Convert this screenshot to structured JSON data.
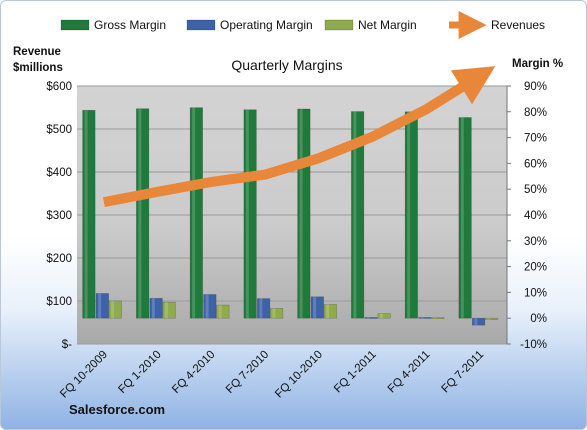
{
  "chart_data": {
    "type": "bar",
    "title": "Quarterly Margins",
    "categories": [
      "FQ 10-2009",
      "FQ 1-2010",
      "FQ 4-2010",
      "FQ 7-2010",
      "FQ 10-2010",
      "FQ 1-2011",
      "FQ 4-2011",
      "FQ 7-2011"
    ],
    "series": [
      {
        "name": "Gross Margin",
        "axis": "right",
        "type": "bar",
        "color": "#1f7a3c",
        "values": [
          80.6,
          81.2,
          81.6,
          80.8,
          81.1,
          80.1,
          80.0,
          77.8
        ]
      },
      {
        "name": "Operating Margin",
        "axis": "right",
        "type": "bar",
        "color": "#3d62a8",
        "values": [
          9.6,
          7.7,
          9.2,
          7.6,
          8.3,
          0.3,
          0.3,
          -2.7
        ]
      },
      {
        "name": "Net Margin",
        "axis": "right",
        "type": "bar",
        "color": "#8fab4e",
        "values": [
          6.7,
          6.2,
          5.1,
          3.8,
          5.3,
          1.8,
          0.2,
          -0.5
        ]
      },
      {
        "name": "Revenues",
        "axis": "left",
        "type": "line",
        "color": "#e8873a",
        "values": [
          330,
          354,
          377,
          394,
          432,
          482,
          546,
          624
        ]
      }
    ],
    "y_left": {
      "label_lines": [
        "Revenue",
        "$millions"
      ],
      "range": [
        0,
        600
      ],
      "ticks": [
        0,
        100,
        200,
        300,
        400,
        500,
        600
      ],
      "tick_labels": [
        "$-",
        "$100",
        "$200",
        "$300",
        "$400",
        "$500",
        "$600"
      ]
    },
    "y_right": {
      "label": "Margin %",
      "range": [
        -10,
        90
      ],
      "ticks": [
        -10,
        0,
        10,
        20,
        30,
        40,
        50,
        60,
        70,
        80,
        90
      ],
      "tick_labels": [
        "-10%",
        "0%",
        "10%",
        "20%",
        "30%",
        "40%",
        "50%",
        "60%",
        "70%",
        "80%",
        "90%"
      ]
    },
    "legend": {
      "position": "top",
      "items": [
        "Gross Margin",
        "Operating Margin",
        "Net Margin",
        "Revenues"
      ]
    },
    "grid": true,
    "source": "Salesforce.com"
  }
}
